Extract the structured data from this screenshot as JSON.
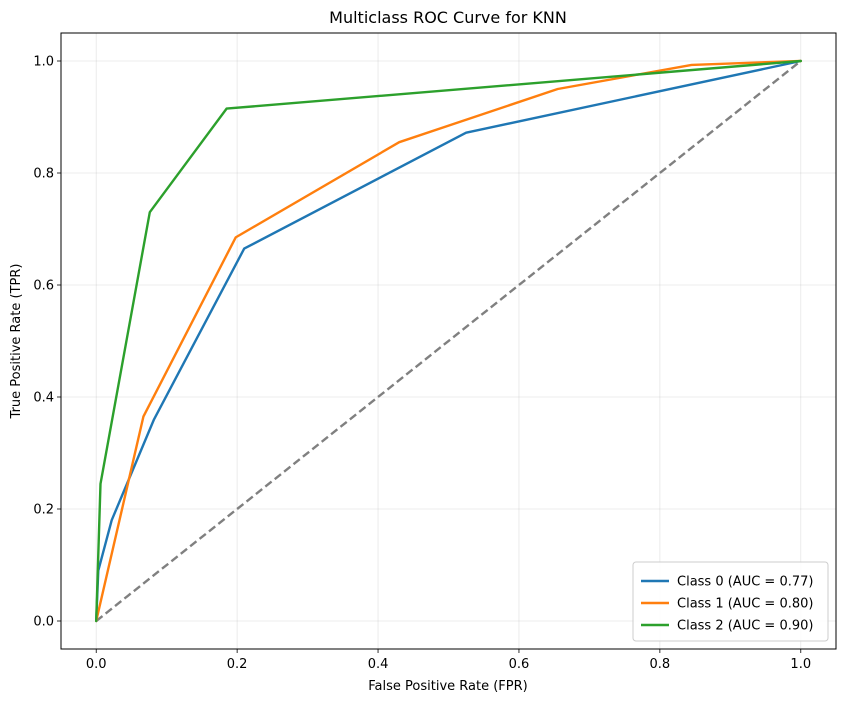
{
  "chart_data": {
    "type": "line",
    "title": "Multiclass ROC Curve for KNN",
    "xlabel": "False Positive Rate (FPR)",
    "ylabel": "True Positive Rate (TPR)",
    "xlim": [
      -0.05,
      1.05
    ],
    "ylim": [
      -0.05,
      1.05
    ],
    "xticks": [
      0.0,
      0.2,
      0.4,
      0.6,
      0.8,
      1.0
    ],
    "yticks": [
      0.0,
      0.2,
      0.4,
      0.6,
      0.8,
      1.0
    ],
    "xtick_labels": [
      "0.0",
      "0.2",
      "0.4",
      "0.6",
      "0.8",
      "1.0"
    ],
    "ytick_labels": [
      "0.0",
      "0.2",
      "0.4",
      "0.6",
      "0.8",
      "1.0"
    ],
    "grid": true,
    "legend_position": "lower-right",
    "series": [
      {
        "name": "Class 0 (AUC = 0.77)",
        "color": "#1f77b4",
        "x": [
          0.0,
          0.003,
          0.022,
          0.082,
          0.21,
          0.525,
          1.0
        ],
        "y": [
          0.0,
          0.09,
          0.18,
          0.36,
          0.665,
          0.872,
          1.0
        ]
      },
      {
        "name": "Class 1 (AUC = 0.80)",
        "color": "#ff7f0e",
        "x": [
          0.0,
          0.067,
          0.198,
          0.43,
          0.655,
          0.845,
          1.0
        ],
        "y": [
          0.0,
          0.365,
          0.685,
          0.855,
          0.95,
          0.993,
          1.0
        ]
      },
      {
        "name": "Class 2 (AUC = 0.90)",
        "color": "#2ca02c",
        "x": [
          0.0,
          0.006,
          0.076,
          0.185,
          1.0
        ],
        "y": [
          0.0,
          0.245,
          0.73,
          0.915,
          1.0
        ]
      }
    ],
    "reference_line": {
      "x": [
        0.0,
        1.0
      ],
      "y": [
        0.0,
        1.0
      ],
      "color": "#808080",
      "style": "dashed"
    }
  }
}
